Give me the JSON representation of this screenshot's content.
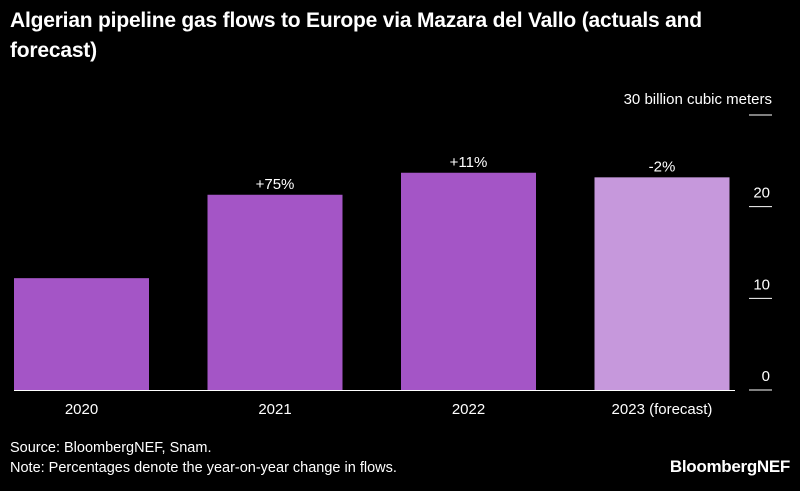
{
  "title": "Algerian pipeline gas flows to Europe via Mazara del Vallo (actuals and forecast)",
  "source": "Source: BloombergNEF, Snam.",
  "note": "Note: Percentages denote the year-on-year change in flows.",
  "brand": "BloombergNEF",
  "chart_data": {
    "type": "bar",
    "title": "Algerian pipeline gas flows to Europe via Mazara del Vallo (actuals and forecast)",
    "categories": [
      "2020",
      "2021",
      "2022",
      "2023 (forecast)"
    ],
    "values": [
      12.2,
      21.3,
      23.7,
      23.2
    ],
    "annotations": [
      "",
      "+75%",
      "+11%",
      "-2%"
    ],
    "ylabel": "30 billion cubic meters",
    "ylim": [
      0,
      30
    ],
    "yticks": [
      0,
      10,
      20,
      30
    ],
    "ytick_labels": [
      "0",
      "10",
      "20",
      ""
    ],
    "y_axis_position": "right",
    "grid": false,
    "colors": [
      "#a455c6",
      "#a455c6",
      "#a455c6",
      "#c698dc"
    ]
  }
}
